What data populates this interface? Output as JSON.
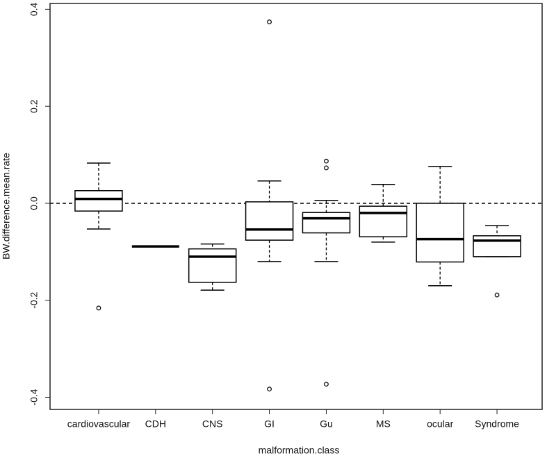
{
  "chart_data": {
    "type": "box",
    "xlabel": "malformation.class",
    "ylabel": "BW.difference.mean.rate",
    "categories": [
      "cardiovascular",
      "CDH",
      "CNS",
      "GI",
      "Gu",
      "MS",
      "ocular",
      "Syndrome"
    ],
    "boxes": [
      {
        "min": -0.053,
        "q1": -0.016,
        "median": 0.009,
        "q3": 0.026,
        "max": 0.083,
        "outliers": [
          -0.216
        ]
      },
      {
        "min": -0.089,
        "q1": -0.089,
        "median": -0.089,
        "q3": -0.089,
        "max": -0.089,
        "outliers": []
      },
      {
        "min": -0.179,
        "q1": -0.163,
        "median": -0.11,
        "q3": -0.094,
        "max": -0.084,
        "outliers": []
      },
      {
        "min": -0.12,
        "q1": -0.076,
        "median": -0.054,
        "q3": 0.003,
        "max": 0.046,
        "outliers": [
          0.374,
          -0.383
        ]
      },
      {
        "min": -0.12,
        "q1": -0.061,
        "median": -0.031,
        "q3": -0.019,
        "max": 0.006,
        "outliers": [
          0.087,
          0.073,
          -0.373
        ]
      },
      {
        "min": -0.08,
        "q1": -0.069,
        "median": -0.02,
        "q3": -0.006,
        "max": 0.039,
        "outliers": []
      },
      {
        "min": -0.17,
        "q1": -0.121,
        "median": -0.074,
        "q3": 0.0,
        "max": 0.076,
        "outliers": []
      },
      {
        "min": -0.11,
        "q1": -0.11,
        "median": -0.077,
        "q3": -0.067,
        "max": -0.046,
        "outliers": [
          -0.189
        ]
      }
    ],
    "hline": 0,
    "ylim": [
      -0.425,
      0.412
    ],
    "yticks": [
      -0.4,
      -0.2,
      {
        "value": 0,
        "label": "0.0"
      },
      0.2,
      0.4
    ],
    "color": "#000000"
  }
}
